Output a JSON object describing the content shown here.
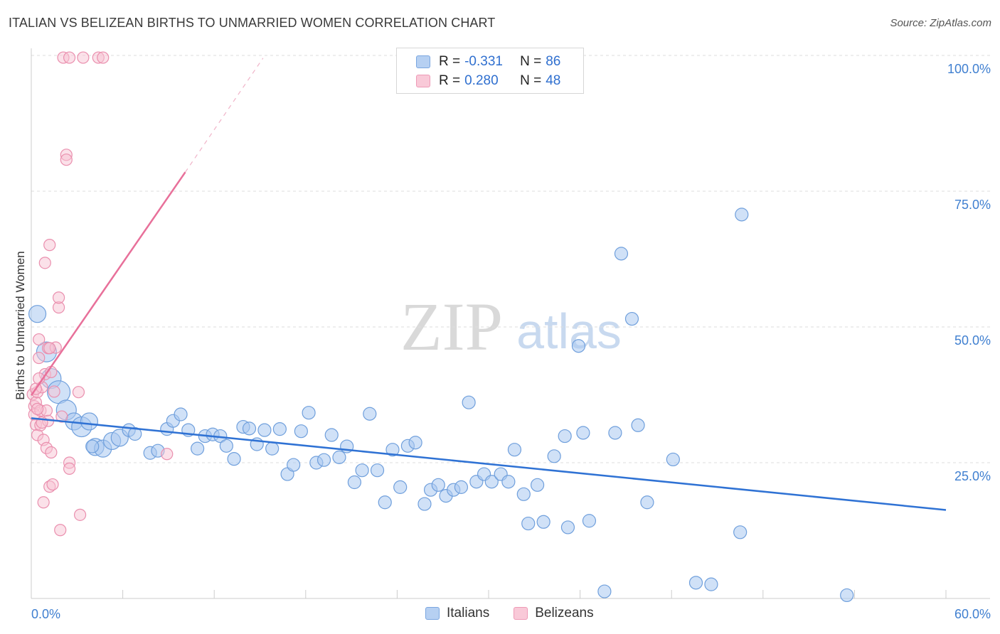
{
  "title": "ITALIAN VS BELIZEAN BIRTHS TO UNMARRIED WOMEN CORRELATION CHART",
  "source": "Source: ZipAtlas.com",
  "watermark": {
    "zip": "ZIP",
    "atlas": "atlas"
  },
  "legend": {
    "r_label": "R =",
    "n_label": "N =",
    "rows": [
      {
        "r": "-0.331",
        "n": "86"
      },
      {
        "r": "0.280",
        "n": "48"
      }
    ]
  },
  "bottom_legend": [
    "Italians",
    "Belizeans"
  ],
  "colors": {
    "blue_fill": "#aac8f0",
    "blue_stroke": "#6f9fdc",
    "blue_line": "#2f72d4",
    "pink_fill": "#f7c4d4",
    "pink_stroke": "#ea8fae",
    "pink_line": "#e8709a",
    "axis_text": "#3f7fd0"
  },
  "chart_data": {
    "type": "scatter",
    "title": "ITALIAN VS BELIZEAN BIRTHS TO UNMARRIED WOMEN CORRELATION CHART",
    "xlabel": "",
    "ylabel": "Births to Unmarried Women",
    "xlim": [
      0,
      60
    ],
    "ylim": [
      0,
      100
    ],
    "x_tick_labels": [
      "0.0%",
      "60.0%"
    ],
    "y_tick_values": [
      25,
      50,
      75,
      100
    ],
    "y_tick_labels": [
      "25.0%",
      "50.0%",
      "75.0%",
      "100.0%"
    ],
    "series": [
      {
        "name": "Italians",
        "r": -0.331,
        "n": 86,
        "trend": {
          "x": [
            0,
            60
          ],
          "y": [
            33.2,
            16.3
          ],
          "dashed_extension": false
        },
        "points": [
          {
            "x": 0.4,
            "y": 52.4,
            "s": 12
          },
          {
            "x": 1.0,
            "y": 45.4,
            "s": 14
          },
          {
            "x": 1.3,
            "y": 40.5,
            "s": 14
          },
          {
            "x": 1.8,
            "y": 38.0,
            "s": 16
          },
          {
            "x": 2.3,
            "y": 34.7,
            "s": 14
          },
          {
            "x": 2.8,
            "y": 32.6,
            "s": 12
          },
          {
            "x": 3.3,
            "y": 31.6,
            "s": 14
          },
          {
            "x": 3.8,
            "y": 32.6,
            "s": 12
          },
          {
            "x": 4.2,
            "y": 27.9,
            "s": 12
          },
          {
            "x": 4.7,
            "y": 27.6,
            "s": 12
          },
          {
            "x": 5.3,
            "y": 29.0,
            "s": 12
          },
          {
            "x": 5.8,
            "y": 29.6,
            "s": 12
          },
          {
            "x": 6.4,
            "y": 31.0,
            "s": 9
          },
          {
            "x": 6.8,
            "y": 30.3,
            "s": 9
          },
          {
            "x": 7.8,
            "y": 26.8,
            "s": 9
          },
          {
            "x": 8.3,
            "y": 27.2,
            "s": 9
          },
          {
            "x": 8.9,
            "y": 31.2,
            "s": 9
          },
          {
            "x": 9.3,
            "y": 32.7,
            "s": 9
          },
          {
            "x": 9.8,
            "y": 33.9,
            "s": 9
          },
          {
            "x": 10.3,
            "y": 31.0,
            "s": 9
          },
          {
            "x": 10.9,
            "y": 27.6,
            "s": 9
          },
          {
            "x": 11.4,
            "y": 29.9,
            "s": 9
          },
          {
            "x": 11.9,
            "y": 30.2,
            "s": 9
          },
          {
            "x": 12.4,
            "y": 29.9,
            "s": 9
          },
          {
            "x": 12.8,
            "y": 28.1,
            "s": 9
          },
          {
            "x": 13.3,
            "y": 25.7,
            "s": 9
          },
          {
            "x": 13.9,
            "y": 31.6,
            "s": 9
          },
          {
            "x": 14.3,
            "y": 31.3,
            "s": 9
          },
          {
            "x": 14.8,
            "y": 28.4,
            "s": 9
          },
          {
            "x": 15.3,
            "y": 31.0,
            "s": 9
          },
          {
            "x": 15.8,
            "y": 27.6,
            "s": 9
          },
          {
            "x": 16.3,
            "y": 31.2,
            "s": 9
          },
          {
            "x": 16.8,
            "y": 22.9,
            "s": 9
          },
          {
            "x": 17.2,
            "y": 24.6,
            "s": 9
          },
          {
            "x": 17.7,
            "y": 30.8,
            "s": 9
          },
          {
            "x": 18.2,
            "y": 34.2,
            "s": 9
          },
          {
            "x": 18.7,
            "y": 25.0,
            "s": 9
          },
          {
            "x": 19.2,
            "y": 25.5,
            "s": 9
          },
          {
            "x": 19.7,
            "y": 30.1,
            "s": 9
          },
          {
            "x": 20.2,
            "y": 26.0,
            "s": 9
          },
          {
            "x": 20.7,
            "y": 28.0,
            "s": 9
          },
          {
            "x": 21.2,
            "y": 21.4,
            "s": 9
          },
          {
            "x": 21.7,
            "y": 23.6,
            "s": 9
          },
          {
            "x": 22.2,
            "y": 34.0,
            "s": 9
          },
          {
            "x": 22.7,
            "y": 23.6,
            "s": 9
          },
          {
            "x": 23.2,
            "y": 17.7,
            "s": 9
          },
          {
            "x": 23.7,
            "y": 27.4,
            "s": 9
          },
          {
            "x": 24.2,
            "y": 20.5,
            "s": 9
          },
          {
            "x": 24.7,
            "y": 28.1,
            "s": 9
          },
          {
            "x": 25.2,
            "y": 28.7,
            "s": 9
          },
          {
            "x": 25.8,
            "y": 17.4,
            "s": 9
          },
          {
            "x": 26.2,
            "y": 20.0,
            "s": 9
          },
          {
            "x": 26.7,
            "y": 20.9,
            "s": 9
          },
          {
            "x": 27.2,
            "y": 18.9,
            "s": 9
          },
          {
            "x": 27.7,
            "y": 20.0,
            "s": 9
          },
          {
            "x": 28.2,
            "y": 20.5,
            "s": 9
          },
          {
            "x": 28.7,
            "y": 36.1,
            "s": 9
          },
          {
            "x": 29.2,
            "y": 21.5,
            "s": 9
          },
          {
            "x": 29.7,
            "y": 22.9,
            "s": 9
          },
          {
            "x": 30.2,
            "y": 21.5,
            "s": 9
          },
          {
            "x": 30.8,
            "y": 22.9,
            "s": 9
          },
          {
            "x": 31.3,
            "y": 21.5,
            "s": 9
          },
          {
            "x": 31.7,
            "y": 27.4,
            "s": 9
          },
          {
            "x": 32.3,
            "y": 19.2,
            "s": 9
          },
          {
            "x": 32.6,
            "y": 13.8,
            "s": 9
          },
          {
            "x": 33.2,
            "y": 20.9,
            "s": 9
          },
          {
            "x": 33.6,
            "y": 14.1,
            "s": 9
          },
          {
            "x": 34.3,
            "y": 26.2,
            "s": 9
          },
          {
            "x": 35.0,
            "y": 29.9,
            "s": 9
          },
          {
            "x": 35.2,
            "y": 13.1,
            "s": 9
          },
          {
            "x": 35.9,
            "y": 46.5,
            "s": 9
          },
          {
            "x": 36.2,
            "y": 30.5,
            "s": 9
          },
          {
            "x": 36.6,
            "y": 14.3,
            "s": 9
          },
          {
            "x": 37.6,
            "y": 1.3,
            "s": 9
          },
          {
            "x": 38.3,
            "y": 30.5,
            "s": 9
          },
          {
            "x": 38.7,
            "y": 63.5,
            "s": 9
          },
          {
            "x": 39.4,
            "y": 51.5,
            "s": 9
          },
          {
            "x": 39.8,
            "y": 31.9,
            "s": 9
          },
          {
            "x": 40.4,
            "y": 17.7,
            "s": 9
          },
          {
            "x": 42.1,
            "y": 25.6,
            "s": 9
          },
          {
            "x": 43.6,
            "y": 2.9,
            "s": 9
          },
          {
            "x": 44.6,
            "y": 2.6,
            "s": 9
          },
          {
            "x": 46.6,
            "y": 70.7,
            "s": 9
          },
          {
            "x": 46.5,
            "y": 12.2,
            "s": 9
          },
          {
            "x": 53.5,
            "y": 0.6,
            "s": 9
          },
          {
            "x": 4.0,
            "y": 28.0,
            "s": 9
          }
        ]
      },
      {
        "name": "Belizeans",
        "r": 0.28,
        "n": 48,
        "trend": {
          "x": [
            0,
            10.1
          ],
          "y": [
            37.4,
            78.5
          ],
          "dashed_to": {
            "x": 15.2,
            "y": 99.5
          }
        },
        "points": [
          {
            "x": 0.1,
            "y": 37.6,
            "s": 8
          },
          {
            "x": 0.2,
            "y": 35.4,
            "s": 8
          },
          {
            "x": 0.2,
            "y": 33.9,
            "s": 8
          },
          {
            "x": 0.3,
            "y": 32.0,
            "s": 8
          },
          {
            "x": 0.3,
            "y": 36.1,
            "s": 8
          },
          {
            "x": 0.4,
            "y": 38.0,
            "s": 8
          },
          {
            "x": 0.4,
            "y": 30.1,
            "s": 8
          },
          {
            "x": 0.5,
            "y": 44.3,
            "s": 8
          },
          {
            "x": 0.5,
            "y": 47.7,
            "s": 8
          },
          {
            "x": 0.6,
            "y": 34.6,
            "s": 8
          },
          {
            "x": 0.6,
            "y": 31.9,
            "s": 8
          },
          {
            "x": 0.7,
            "y": 38.9,
            "s": 8
          },
          {
            "x": 0.8,
            "y": 29.2,
            "s": 8
          },
          {
            "x": 0.8,
            "y": 17.7,
            "s": 8
          },
          {
            "x": 0.9,
            "y": 61.8,
            "s": 8
          },
          {
            "x": 0.9,
            "y": 41.3,
            "s": 8
          },
          {
            "x": 1.0,
            "y": 27.7,
            "s": 8
          },
          {
            "x": 1.0,
            "y": 34.6,
            "s": 8
          },
          {
            "x": 1.1,
            "y": 32.7,
            "s": 8
          },
          {
            "x": 1.1,
            "y": 46.1,
            "s": 8
          },
          {
            "x": 1.2,
            "y": 65.1,
            "s": 8
          },
          {
            "x": 1.2,
            "y": 20.6,
            "s": 8
          },
          {
            "x": 1.3,
            "y": 26.9,
            "s": 8
          },
          {
            "x": 1.3,
            "y": 41.7,
            "s": 8
          },
          {
            "x": 1.4,
            "y": 21.0,
            "s": 8
          },
          {
            "x": 1.5,
            "y": 38.1,
            "s": 8
          },
          {
            "x": 1.6,
            "y": 46.2,
            "s": 8
          },
          {
            "x": 1.8,
            "y": 53.6,
            "s": 8
          },
          {
            "x": 1.8,
            "y": 55.4,
            "s": 8
          },
          {
            "x": 1.9,
            "y": 12.6,
            "s": 8
          },
          {
            "x": 2.0,
            "y": 33.5,
            "s": 8
          },
          {
            "x": 2.1,
            "y": 99.6,
            "s": 8
          },
          {
            "x": 2.3,
            "y": 81.7,
            "s": 8
          },
          {
            "x": 2.3,
            "y": 80.8,
            "s": 8
          },
          {
            "x": 2.5,
            "y": 99.6,
            "s": 8
          },
          {
            "x": 2.5,
            "y": 25.0,
            "s": 8
          },
          {
            "x": 2.5,
            "y": 23.9,
            "s": 8
          },
          {
            "x": 3.1,
            "y": 38.0,
            "s": 8
          },
          {
            "x": 3.2,
            "y": 15.4,
            "s": 8
          },
          {
            "x": 3.4,
            "y": 99.6,
            "s": 8
          },
          {
            "x": 4.4,
            "y": 99.6,
            "s": 8
          },
          {
            "x": 4.7,
            "y": 99.6,
            "s": 8
          },
          {
            "x": 8.9,
            "y": 26.6,
            "s": 8
          },
          {
            "x": 0.3,
            "y": 38.6,
            "s": 8
          },
          {
            "x": 0.7,
            "y": 32.4,
            "s": 8
          },
          {
            "x": 0.5,
            "y": 40.5,
            "s": 8
          },
          {
            "x": 1.2,
            "y": 46.1,
            "s": 8
          },
          {
            "x": 0.4,
            "y": 34.9,
            "s": 8
          }
        ]
      }
    ]
  }
}
